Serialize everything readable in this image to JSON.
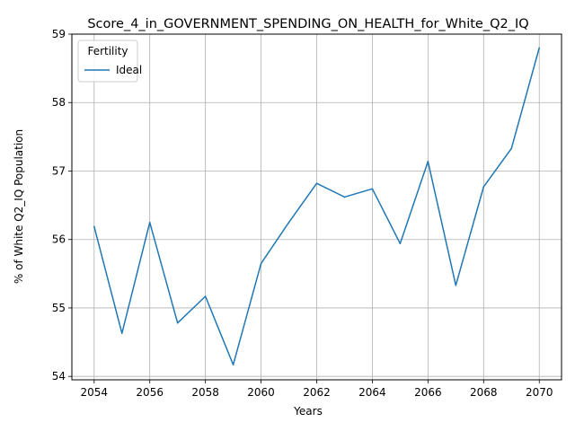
{
  "chart_data": {
    "type": "line",
    "title": "Score_4_in_GOVERNMENT_SPENDING_ON_HEALTH_for_White_Q2_IQ",
    "xlabel": "Years",
    "ylabel": "% of White Q2_IQ Population",
    "x": [
      2054,
      2055,
      2056,
      2057,
      2058,
      2059,
      2060,
      2061,
      2062,
      2063,
      2064,
      2065,
      2066,
      2067,
      2068,
      2069,
      2070
    ],
    "series": [
      {
        "name": "Ideal",
        "color": "#1f77b4",
        "values": [
          56.19,
          54.63,
          56.25,
          54.78,
          55.17,
          54.17,
          55.65,
          56.25,
          56.82,
          56.62,
          56.74,
          55.94,
          57.14,
          55.33,
          56.77,
          57.33,
          58.8
        ]
      }
    ],
    "xlim": [
      2053.2,
      2070.8
    ],
    "ylim": [
      53.95,
      59.0
    ],
    "xticks": [
      2054,
      2056,
      2058,
      2060,
      2062,
      2064,
      2066,
      2068,
      2070
    ],
    "yticks": [
      54,
      55,
      56,
      57,
      58,
      59
    ],
    "grid": true,
    "legend": {
      "title": "Fertility",
      "placement": "top-left"
    }
  }
}
